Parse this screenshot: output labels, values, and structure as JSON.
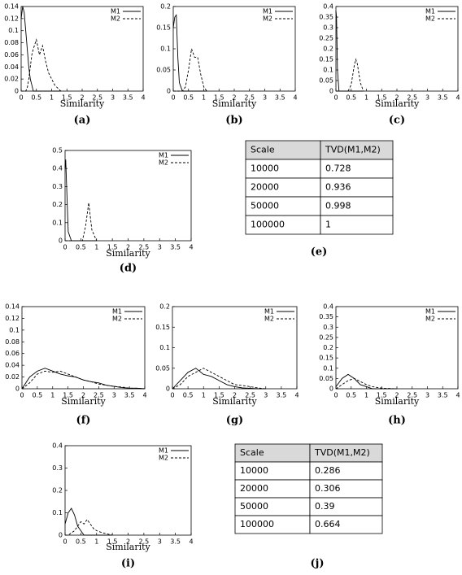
{
  "chart_data": [
    {
      "type": "line",
      "caption": "(a)",
      "xlabel": "Similarity",
      "legend": "top-right",
      "xlim": [
        0,
        4
      ],
      "xticks": [
        0,
        0.5,
        1,
        1.5,
        2,
        2.5,
        3,
        3.5,
        4
      ],
      "ylim": [
        0,
        0.14
      ],
      "yticks": [
        0,
        0.02,
        0.04,
        0.06,
        0.08,
        0.1,
        0.12,
        0.14
      ],
      "x": [
        0,
        0.05,
        0.1,
        0.15,
        0.2,
        0.25,
        0.3,
        0.35,
        0.4,
        0.5,
        0.6,
        0.7,
        0.8,
        0.9,
        1,
        1.1,
        1.2,
        1.3
      ],
      "series": [
        {
          "name": "M1",
          "color": "#000",
          "style": "solid",
          "values": [
            0.12,
            0.14,
            0.13,
            0.1,
            0.07,
            0.04,
            0.02,
            0.01,
            0,
            0,
            0,
            0,
            0,
            0,
            0,
            0,
            0,
            0
          ]
        },
        {
          "name": "M2",
          "color": "#000",
          "style": "dashed",
          "values": [
            0,
            0,
            0,
            0,
            0.005,
            0.02,
            0.04,
            0.06,
            0.07,
            0.085,
            0.06,
            0.075,
            0.05,
            0.03,
            0.02,
            0.01,
            0.005,
            0
          ]
        }
      ]
    },
    {
      "type": "line",
      "caption": "(b)",
      "xlabel": "Similarity",
      "legend": "top-right",
      "xlim": [
        0,
        4
      ],
      "xticks": [
        0,
        0.5,
        1,
        1.5,
        2,
        2.5,
        3,
        3.5,
        4
      ],
      "ylim": [
        0,
        0.2
      ],
      "yticks": [
        0,
        0.05,
        0.1,
        0.15,
        0.2
      ],
      "x": [
        0,
        0.05,
        0.1,
        0.15,
        0.2,
        0.3,
        0.4,
        0.5,
        0.6,
        0.7,
        0.8,
        0.9,
        1,
        1.1
      ],
      "series": [
        {
          "name": "M1",
          "color": "#000",
          "style": "solid",
          "values": [
            0.15,
            0.175,
            0.18,
            0.08,
            0.02,
            0,
            0,
            0,
            0,
            0,
            0,
            0,
            0,
            0
          ]
        },
        {
          "name": "M2",
          "color": "#000",
          "style": "dashed",
          "values": [
            0,
            0,
            0,
            0,
            0,
            0,
            0.01,
            0.05,
            0.1,
            0.08,
            0.08,
            0.04,
            0.01,
            0
          ]
        }
      ]
    },
    {
      "type": "line",
      "caption": "(c)",
      "xlabel": "Similarity",
      "legend": "top-right",
      "xlim": [
        0,
        4
      ],
      "xticks": [
        0,
        0.5,
        1,
        1.5,
        2,
        2.5,
        3,
        3.5,
        4
      ],
      "ylim": [
        0,
        0.4
      ],
      "yticks": [
        0,
        0.05,
        0.1,
        0.15,
        0.2,
        0.25,
        0.3,
        0.35,
        0.4
      ],
      "x": [
        0,
        0.02,
        0.05,
        0.1,
        0.4,
        0.5,
        0.6,
        0.65,
        0.7,
        0.8,
        0.9
      ],
      "series": [
        {
          "name": "M1",
          "color": "#000",
          "style": "solid",
          "values": [
            0.38,
            0.35,
            0.1,
            0,
            0,
            0,
            0,
            0,
            0,
            0,
            0
          ]
        },
        {
          "name": "M2",
          "color": "#000",
          "style": "dashed",
          "values": [
            0,
            0,
            0,
            0,
            0,
            0.03,
            0.12,
            0.15,
            0.13,
            0.04,
            0
          ]
        }
      ]
    },
    {
      "type": "line",
      "caption": "(d)",
      "xlabel": "Similarity",
      "legend": "top-right",
      "xlim": [
        0,
        4
      ],
      "xticks": [
        0,
        0.5,
        1,
        1.5,
        2,
        2.5,
        3,
        3.5,
        4
      ],
      "ylim": [
        0,
        0.5
      ],
      "yticks": [
        0,
        0.1,
        0.2,
        0.3,
        0.4,
        0.5
      ],
      "x": [
        0,
        0.02,
        0.05,
        0.1,
        0.2,
        0.55,
        0.65,
        0.75,
        0.85,
        1
      ],
      "series": [
        {
          "name": "M1",
          "color": "#000",
          "style": "solid",
          "values": [
            0.4,
            0.45,
            0.3,
            0.05,
            0,
            0,
            0,
            0,
            0,
            0
          ]
        },
        {
          "name": "M2",
          "color": "#000",
          "style": "dashed",
          "values": [
            0,
            0,
            0,
            0,
            0,
            0,
            0.08,
            0.21,
            0.06,
            0
          ]
        }
      ]
    },
    {
      "type": "line",
      "caption": "(f)",
      "xlabel": "Similarity",
      "legend": "top-right",
      "xlim": [
        0,
        4
      ],
      "xticks": [
        0,
        0.5,
        1,
        1.5,
        2,
        2.5,
        3,
        3.5,
        4
      ],
      "ylim": [
        0,
        0.14
      ],
      "yticks": [
        0,
        0.02,
        0.04,
        0.06,
        0.08,
        0.1,
        0.12,
        0.14
      ],
      "x": [
        0,
        0.25,
        0.5,
        0.75,
        1,
        1.25,
        1.5,
        1.75,
        2,
        2.25,
        2.5,
        2.75,
        3,
        3.25,
        3.5,
        3.75,
        4
      ],
      "series": [
        {
          "name": "M1",
          "color": "#000",
          "style": "solid",
          "values": [
            0,
            0.02,
            0.03,
            0.035,
            0.03,
            0.025,
            0.022,
            0.02,
            0.015,
            0.012,
            0.01,
            0.006,
            0.004,
            0.002,
            0.001,
            0.001,
            0
          ]
        },
        {
          "name": "M2",
          "color": "#000",
          "style": "dashed",
          "values": [
            0,
            0.01,
            0.025,
            0.03,
            0.028,
            0.03,
            0.025,
            0.02,
            0.015,
            0.012,
            0.008,
            0.006,
            0.004,
            0.003,
            0.001,
            0.001,
            0
          ]
        }
      ]
    },
    {
      "type": "line",
      "caption": "(g)",
      "xlabel": "Similarity",
      "legend": "top-right",
      "xlim": [
        0,
        4
      ],
      "xticks": [
        0,
        0.5,
        1,
        1.5,
        2,
        2.5,
        3,
        3.5,
        4
      ],
      "ylim": [
        0,
        0.2
      ],
      "yticks": [
        0,
        0.05,
        0.1,
        0.15,
        0.2
      ],
      "x": [
        0,
        0.25,
        0.5,
        0.75,
        1,
        1.25,
        1.5,
        1.75,
        2,
        2.25,
        2.5,
        2.75,
        3
      ],
      "series": [
        {
          "name": "M1",
          "color": "#000",
          "style": "solid",
          "values": [
            0,
            0.02,
            0.04,
            0.05,
            0.035,
            0.03,
            0.02,
            0.01,
            0.005,
            0.002,
            0.001,
            0,
            0
          ]
        },
        {
          "name": "M2",
          "color": "#000",
          "style": "dashed",
          "values": [
            0,
            0.01,
            0.03,
            0.04,
            0.05,
            0.04,
            0.03,
            0.02,
            0.01,
            0.008,
            0.005,
            0.002,
            0
          ]
        }
      ]
    },
    {
      "type": "line",
      "caption": "(h)",
      "xlabel": "Similarity",
      "legend": "top-right",
      "xlim": [
        0,
        4
      ],
      "xticks": [
        0,
        0.5,
        1,
        1.5,
        2,
        2.5,
        3,
        3.5,
        4
      ],
      "ylim": [
        0,
        0.4
      ],
      "yticks": [
        0,
        0.05,
        0.1,
        0.15,
        0.2,
        0.25,
        0.3,
        0.35,
        0.4
      ],
      "x": [
        0,
        0.2,
        0.4,
        0.6,
        0.8,
        1,
        1.2,
        1.4,
        1.6,
        1.8,
        2
      ],
      "series": [
        {
          "name": "M1",
          "color": "#000",
          "style": "solid",
          "values": [
            0.01,
            0.05,
            0.07,
            0.05,
            0.02,
            0.01,
            0,
            0,
            0,
            0,
            0
          ]
        },
        {
          "name": "M2",
          "color": "#000",
          "style": "dashed",
          "values": [
            0,
            0.02,
            0.04,
            0.05,
            0.035,
            0.02,
            0.01,
            0.005,
            0.002,
            0.001,
            0
          ]
        }
      ]
    },
    {
      "type": "line",
      "caption": "(i)",
      "xlabel": "Similarity",
      "legend": "top-right",
      "xlim": [
        0,
        4
      ],
      "xticks": [
        0,
        0.5,
        1,
        1.5,
        2,
        2.5,
        3,
        3.5,
        4
      ],
      "ylim": [
        0,
        0.4
      ],
      "yticks": [
        0,
        0.1,
        0.2,
        0.3,
        0.4
      ],
      "x": [
        0,
        0.1,
        0.2,
        0.3,
        0.4,
        0.5,
        0.6,
        0.7,
        0.8,
        0.9,
        1,
        1.2,
        1.5
      ],
      "series": [
        {
          "name": "M1",
          "color": "#000",
          "style": "solid",
          "values": [
            0.05,
            0.1,
            0.12,
            0.09,
            0.04,
            0.02,
            0,
            0,
            0,
            0,
            0,
            0,
            0
          ]
        },
        {
          "name": "M2",
          "color": "#000",
          "style": "dashed",
          "values": [
            0,
            0,
            0.01,
            0.02,
            0.04,
            0.06,
            0.05,
            0.07,
            0.05,
            0.03,
            0.02,
            0.01,
            0
          ]
        }
      ]
    }
  ],
  "tables": [
    {
      "caption": "(e)",
      "header": [
        "Scale",
        "TVD(M1,M2)"
      ],
      "rows": [
        [
          10000,
          0.728
        ],
        [
          20000,
          0.936
        ],
        [
          50000,
          0.998
        ],
        [
          100000,
          1
        ]
      ]
    },
    {
      "caption": "(j)",
      "header": [
        "Scale",
        "TVD(M1,M2)"
      ],
      "rows": [
        [
          10000,
          0.286
        ],
        [
          20000,
          0.306
        ],
        [
          50000,
          0.39
        ],
        [
          100000,
          0.664
        ]
      ]
    }
  ]
}
